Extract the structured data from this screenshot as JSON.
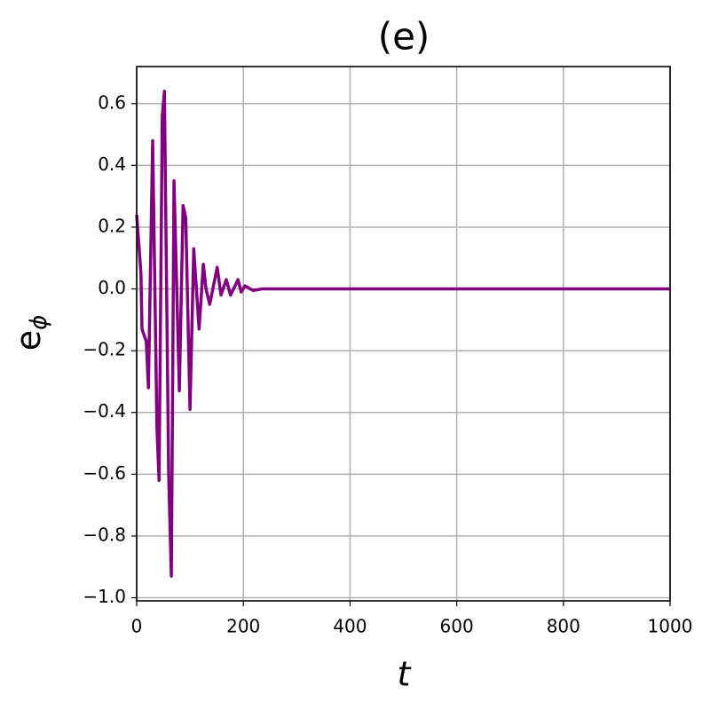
{
  "chart_data": {
    "type": "line",
    "title": "(e)",
    "x_label": "t",
    "y_label": "e",
    "y_label_subscript": "ϕ",
    "color": "#800080",
    "grid": true,
    "x": [
      0,
      8,
      10,
      18,
      22,
      30,
      38,
      42,
      48,
      52,
      60,
      65,
      70,
      80,
      87,
      92,
      100,
      107,
      117,
      125,
      130,
      137,
      151,
      158,
      168,
      176,
      190,
      196,
      203,
      218,
      235,
      1000
    ],
    "values": [
      0.24,
      0.05,
      -0.13,
      -0.17,
      -0.32,
      0.48,
      -0.45,
      -0.62,
      0.56,
      0.64,
      -0.6,
      -0.93,
      0.35,
      -0.33,
      0.27,
      0.23,
      -0.39,
      0.13,
      -0.13,
      0.08,
      0.0,
      -0.05,
      0.07,
      -0.02,
      0.03,
      -0.02,
      0.03,
      -0.01,
      0.01,
      -0.005,
      0.0,
      0.0
    ],
    "xlim": [
      0,
      1000
    ],
    "xticks": [
      0,
      200,
      400,
      600,
      800,
      1000
    ],
    "ylim": [
      -1.01,
      0.72
    ],
    "yticks": [
      {
        "value": -1.0,
        "label": "−1.0"
      },
      {
        "value": -0.8,
        "label": "−0.8"
      },
      {
        "value": -0.6,
        "label": "−0.6"
      },
      {
        "value": -0.4,
        "label": "−0.4"
      },
      {
        "value": -0.2,
        "label": "−0.2"
      },
      {
        "value": 0.0,
        "label": "0.0"
      },
      0.2,
      0.4,
      0.6
    ]
  }
}
